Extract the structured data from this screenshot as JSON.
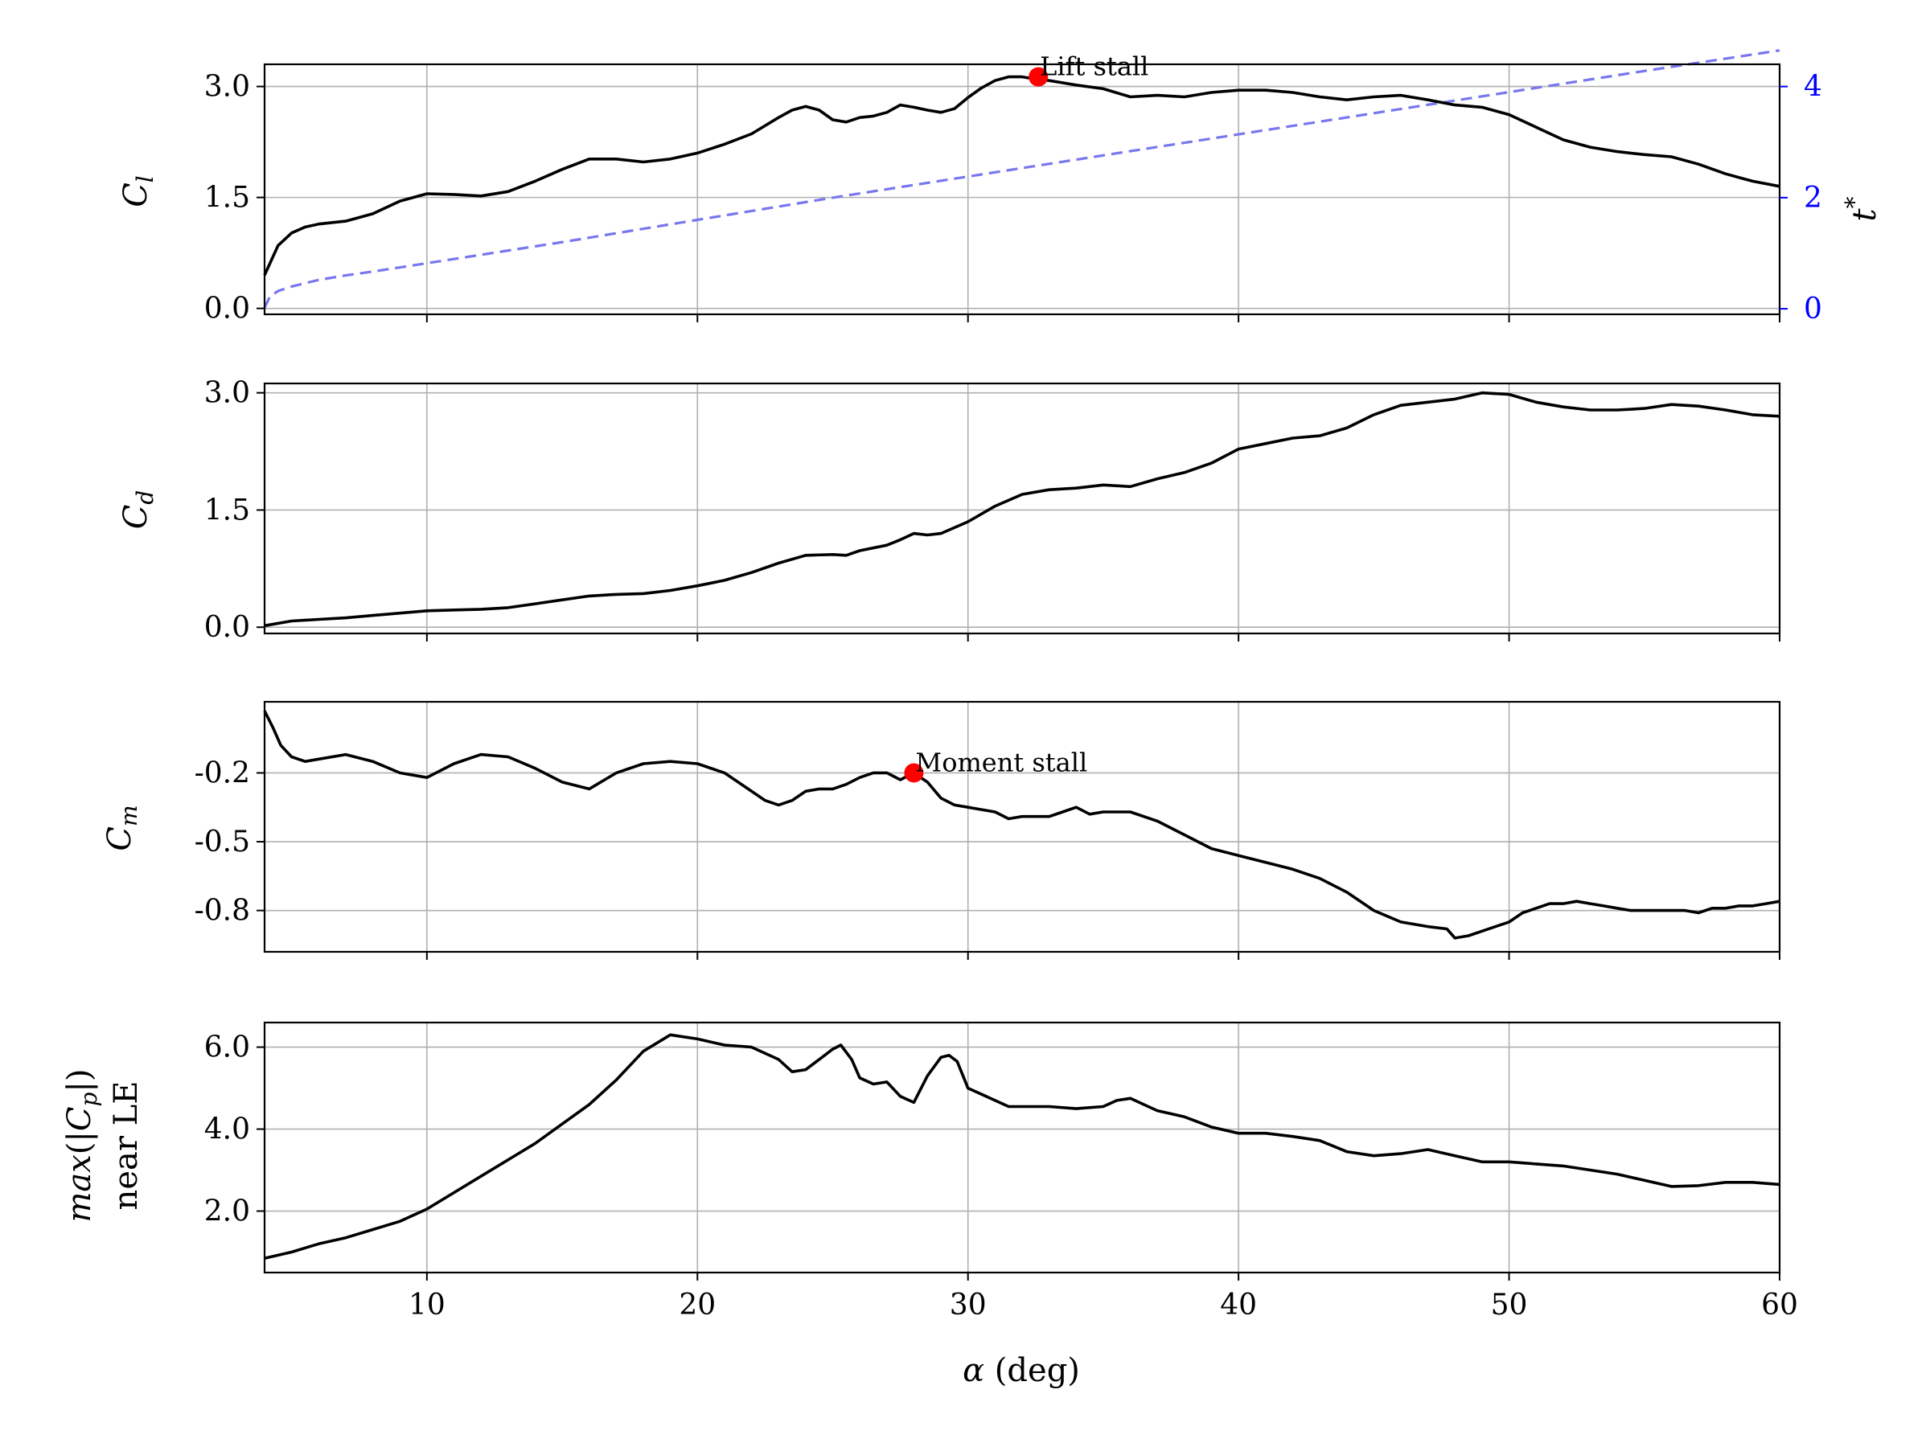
{
  "chart_data": [
    {
      "id": "cl",
      "type": "line",
      "ylabel": "C_l",
      "xlim": [
        4,
        60
      ],
      "ylim": [
        -0.08,
        3.3
      ],
      "xticks": [
        10,
        20,
        30,
        40,
        50,
        60
      ],
      "yticks": [
        0.0,
        1.5,
        3.0
      ],
      "ytick_labels": [
        "0.0",
        "1.5",
        "3.0"
      ],
      "grid": true,
      "series": [
        {
          "name": "C_l",
          "color": "#000000",
          "x": [
            4.0,
            4.5,
            5.0,
            5.5,
            6.0,
            7.0,
            8.0,
            9.0,
            10.0,
            11.0,
            12.0,
            13.0,
            14.0,
            15.0,
            16.0,
            17.0,
            18.0,
            19.0,
            20.0,
            21.0,
            22.0,
            23.0,
            23.5,
            24.0,
            24.5,
            25.0,
            25.5,
            26.0,
            26.5,
            27.0,
            27.5,
            28.0,
            28.5,
            29.0,
            29.5,
            30.0,
            30.5,
            31.0,
            31.5,
            32.0,
            32.5,
            33.0,
            33.5,
            34.0,
            35.0,
            36.0,
            37.0,
            38.0,
            39.0,
            40.0,
            41.0,
            42.0,
            43.0,
            44.0,
            45.0,
            46.0,
            47.0,
            48.0,
            49.0,
            50.0,
            51.0,
            52.0,
            53.0,
            54.0,
            55.0,
            56.0,
            57.0,
            58.0,
            59.0,
            60.0
          ],
          "values": [
            0.45,
            0.85,
            1.02,
            1.1,
            1.14,
            1.18,
            1.28,
            1.45,
            1.55,
            1.54,
            1.52,
            1.58,
            1.72,
            1.88,
            2.02,
            2.02,
            1.98,
            2.02,
            2.1,
            2.22,
            2.36,
            2.58,
            2.68,
            2.73,
            2.68,
            2.55,
            2.52,
            2.58,
            2.6,
            2.65,
            2.75,
            2.72,
            2.68,
            2.65,
            2.7,
            2.85,
            2.98,
            3.08,
            3.13,
            3.13,
            3.1,
            3.08,
            3.05,
            3.02,
            2.97,
            2.86,
            2.88,
            2.86,
            2.92,
            2.95,
            2.95,
            2.92,
            2.86,
            2.82,
            2.86,
            2.88,
            2.82,
            2.75,
            2.72,
            2.62,
            2.45,
            2.28,
            2.18,
            2.12,
            2.08,
            2.05,
            1.95,
            1.82,
            1.72,
            1.65
          ]
        }
      ],
      "secondary_axis": {
        "ylabel": "t*",
        "color": "#0000ff",
        "ylim": [
          -0.1,
          4.4
        ],
        "yticks": [
          0,
          2,
          4
        ],
        "ytick_labels": [
          "0",
          "2",
          "4"
        ],
        "series": {
          "name": "t*",
          "color": "#7777ee",
          "style": "dashed",
          "x": [
            4.0,
            4.2,
            4.5,
            5.0,
            6.0,
            7.0,
            8.0,
            10.0,
            15.0,
            20.0,
            25.0,
            30.0,
            35.0,
            40.0,
            45.0,
            50.0,
            55.0,
            60.0
          ],
          "values": [
            0.02,
            0.22,
            0.32,
            0.4,
            0.52,
            0.6,
            0.67,
            0.82,
            1.2,
            1.6,
            2.0,
            2.38,
            2.76,
            3.14,
            3.52,
            3.9,
            4.28,
            4.65
          ]
        }
      },
      "annotation": {
        "text": "Lift stall",
        "x": 32.6,
        "y": 3.13,
        "marker_color": "#ff0000"
      }
    },
    {
      "id": "cd",
      "type": "line",
      "ylabel": "C_d",
      "xlim": [
        4,
        60
      ],
      "ylim": [
        -0.08,
        3.12
      ],
      "xticks": [
        10,
        20,
        30,
        40,
        50,
        60
      ],
      "yticks": [
        0.0,
        1.5,
        3.0
      ],
      "ytick_labels": [
        "0.0",
        "1.5",
        "3.0"
      ],
      "grid": true,
      "series": [
        {
          "name": "C_d",
          "color": "#000000",
          "x": [
            4.0,
            5.0,
            6.0,
            7.0,
            8.0,
            9.0,
            10.0,
            11.0,
            12.0,
            13.0,
            14.0,
            15.0,
            16.0,
            17.0,
            18.0,
            19.0,
            20.0,
            21.0,
            22.0,
            23.0,
            24.0,
            25.0,
            25.5,
            26.0,
            27.0,
            27.5,
            28.0,
            28.5,
            29.0,
            30.0,
            31.0,
            32.0,
            33.0,
            34.0,
            35.0,
            36.0,
            37.0,
            38.0,
            39.0,
            40.0,
            41.0,
            42.0,
            43.0,
            44.0,
            45.0,
            46.0,
            47.0,
            48.0,
            49.0,
            50.0,
            51.0,
            52.0,
            53.0,
            54.0,
            55.0,
            56.0,
            57.0,
            58.0,
            59.0,
            60.0
          ],
          "values": [
            0.02,
            0.08,
            0.1,
            0.12,
            0.15,
            0.18,
            0.21,
            0.22,
            0.23,
            0.25,
            0.3,
            0.35,
            0.4,
            0.42,
            0.43,
            0.47,
            0.53,
            0.6,
            0.7,
            0.82,
            0.92,
            0.93,
            0.92,
            0.98,
            1.05,
            1.12,
            1.2,
            1.18,
            1.2,
            1.35,
            1.55,
            1.7,
            1.76,
            1.78,
            1.82,
            1.8,
            1.9,
            1.98,
            2.1,
            2.28,
            2.35,
            2.42,
            2.45,
            2.55,
            2.72,
            2.84,
            2.88,
            2.92,
            3.0,
            2.98,
            2.88,
            2.82,
            2.78,
            2.78,
            2.8,
            2.85,
            2.83,
            2.78,
            2.72,
            2.7
          ]
        }
      ]
    },
    {
      "id": "cm",
      "type": "line",
      "ylabel": "C_m",
      "xlim": [
        4,
        60
      ],
      "ylim": [
        -0.98,
        0.11
      ],
      "xticks": [
        10,
        20,
        30,
        40,
        50,
        60
      ],
      "yticks": [
        -0.2,
        -0.5,
        -0.8
      ],
      "ytick_labels": [
        "-0.2",
        "-0.5",
        "-0.8"
      ],
      "grid": true,
      "series": [
        {
          "name": "C_m",
          "color": "#000000",
          "x": [
            4.0,
            4.3,
            4.6,
            5.0,
            5.5,
            6.0,
            7.0,
            8.0,
            9.0,
            10.0,
            11.0,
            12.0,
            13.0,
            14.0,
            15.0,
            16.0,
            17.0,
            18.0,
            19.0,
            20.0,
            21.0,
            22.0,
            22.5,
            23.0,
            23.5,
            24.0,
            24.5,
            25.0,
            25.5,
            26.0,
            26.5,
            27.0,
            27.5,
            28.0,
            28.5,
            29.0,
            29.5,
            30.0,
            30.5,
            31.0,
            31.5,
            32.0,
            32.5,
            33.0,
            33.5,
            34.0,
            34.5,
            35.0,
            36.0,
            37.0,
            38.0,
            39.0,
            40.0,
            41.0,
            42.0,
            43.0,
            44.0,
            45.0,
            46.0,
            47.0,
            47.7,
            48.0,
            48.5,
            49.0,
            49.5,
            50.0,
            50.5,
            51.0,
            51.5,
            52.0,
            52.5,
            53.0,
            53.5,
            54.0,
            54.5,
            55.0,
            55.5,
            56.0,
            56.5,
            57.0,
            57.5,
            58.0,
            58.5,
            59.0,
            59.5,
            60.0
          ],
          "values": [
            0.07,
            0.0,
            -0.08,
            -0.13,
            -0.15,
            -0.14,
            -0.12,
            -0.15,
            -0.2,
            -0.22,
            -0.16,
            -0.12,
            -0.13,
            -0.18,
            -0.24,
            -0.27,
            -0.2,
            -0.16,
            -0.15,
            -0.16,
            -0.2,
            -0.28,
            -0.32,
            -0.34,
            -0.32,
            -0.28,
            -0.27,
            -0.27,
            -0.25,
            -0.22,
            -0.2,
            -0.2,
            -0.23,
            -0.2,
            -0.24,
            -0.31,
            -0.34,
            -0.35,
            -0.36,
            -0.37,
            -0.4,
            -0.39,
            -0.39,
            -0.39,
            -0.37,
            -0.35,
            -0.38,
            -0.37,
            -0.37,
            -0.41,
            -0.47,
            -0.53,
            -0.56,
            -0.59,
            -0.62,
            -0.66,
            -0.72,
            -0.8,
            -0.85,
            -0.87,
            -0.88,
            -0.92,
            -0.91,
            -0.89,
            -0.87,
            -0.85,
            -0.81,
            -0.79,
            -0.77,
            -0.77,
            -0.76,
            -0.77,
            -0.78,
            -0.79,
            -0.8,
            -0.8,
            -0.8,
            -0.8,
            -0.8,
            -0.81,
            -0.79,
            -0.79,
            -0.78,
            -0.78,
            -0.77,
            -0.76
          ]
        }
      ],
      "annotation": {
        "text": "Moment stall",
        "x": 28.0,
        "y": -0.2,
        "marker_color": "#ff0000"
      }
    },
    {
      "id": "cp",
      "type": "line",
      "ylabel_line1": "max(|C_p|)",
      "ylabel_line2": "near LE",
      "xlabel": "α (deg)",
      "xlim": [
        4,
        60
      ],
      "ylim": [
        0.5,
        6.6
      ],
      "xticks": [
        10,
        20,
        30,
        40,
        50,
        60
      ],
      "xtick_labels": [
        "10",
        "20",
        "30",
        "40",
        "50",
        "60"
      ],
      "yticks": [
        2.0,
        4.0,
        6.0
      ],
      "ytick_labels": [
        "2.0",
        "4.0",
        "6.0"
      ],
      "grid": true,
      "series": [
        {
          "name": "max(|C_p|) near LE",
          "color": "#000000",
          "x": [
            4.0,
            5.0,
            6.0,
            7.0,
            8.0,
            9.0,
            10.0,
            12.0,
            14.0,
            16.0,
            17.0,
            18.0,
            19.0,
            20.0,
            21.0,
            22.0,
            23.0,
            23.5,
            24.0,
            24.5,
            25.0,
            25.3,
            25.7,
            26.0,
            26.5,
            27.0,
            27.5,
            28.0,
            28.5,
            29.0,
            29.3,
            29.6,
            30.0,
            30.5,
            31.0,
            31.5,
            32.0,
            33.0,
            34.0,
            35.0,
            35.5,
            36.0,
            36.5,
            37.0,
            38.0,
            39.0,
            40.0,
            41.0,
            42.0,
            43.0,
            44.0,
            45.0,
            46.0,
            47.0,
            48.0,
            49.0,
            50.0,
            51.0,
            52.0,
            53.0,
            54.0,
            55.0,
            56.0,
            57.0,
            58.0,
            59.0,
            60.0
          ],
          "values": [
            0.85,
            1.0,
            1.2,
            1.35,
            1.55,
            1.75,
            2.05,
            2.85,
            3.65,
            4.6,
            5.2,
            5.9,
            6.3,
            6.2,
            6.05,
            6.0,
            5.7,
            5.4,
            5.45,
            5.7,
            5.95,
            6.05,
            5.7,
            5.25,
            5.1,
            5.15,
            4.8,
            4.65,
            5.3,
            5.75,
            5.8,
            5.65,
            5.0,
            4.85,
            4.7,
            4.55,
            4.55,
            4.55,
            4.5,
            4.55,
            4.7,
            4.75,
            4.6,
            4.45,
            4.3,
            4.05,
            3.9,
            3.9,
            3.82,
            3.72,
            3.45,
            3.35,
            3.4,
            3.5,
            3.35,
            3.2,
            3.2,
            3.15,
            3.1,
            3.0,
            2.9,
            2.75,
            2.6,
            2.62,
            2.7,
            2.7,
            2.65
          ]
        }
      ]
    }
  ]
}
